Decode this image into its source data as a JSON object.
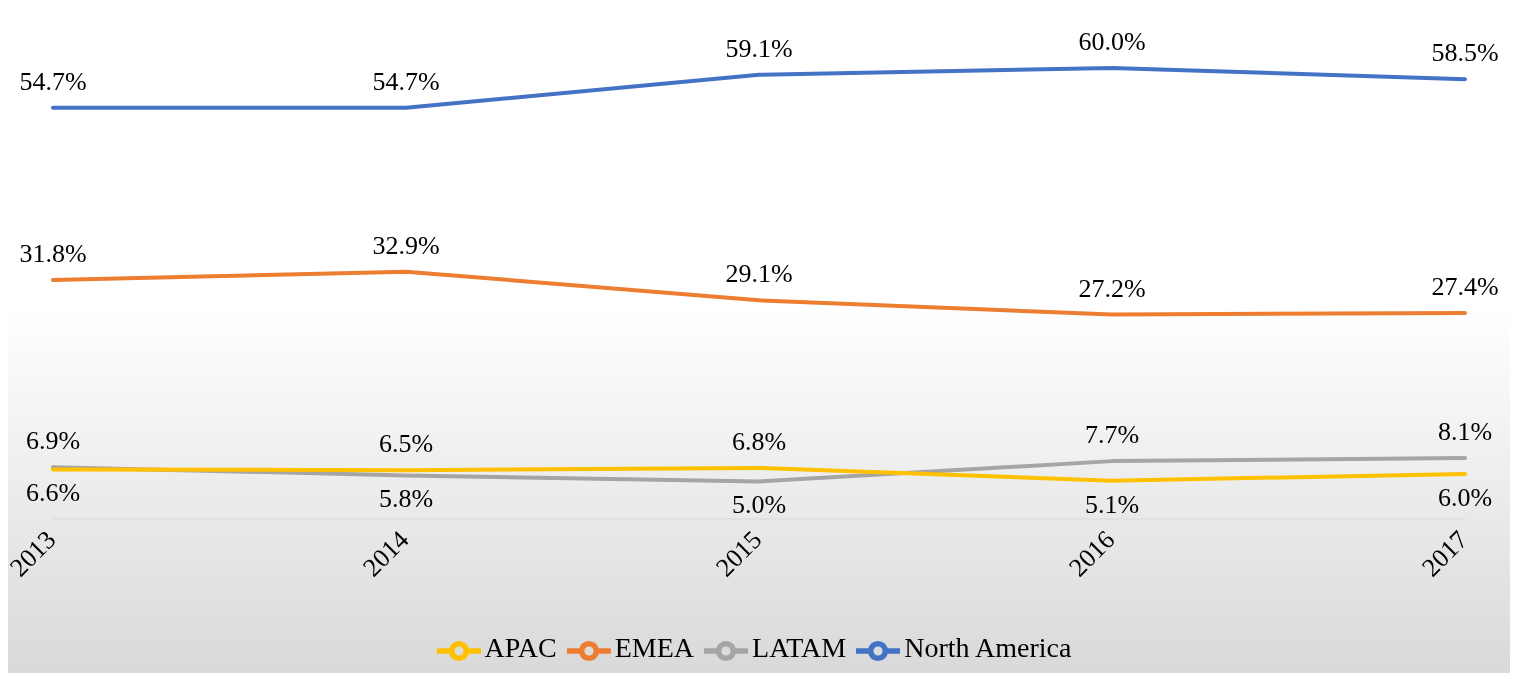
{
  "chart_data": {
    "type": "line",
    "categories": [
      "2013",
      "2014",
      "2015",
      "2016",
      "2017"
    ],
    "series": [
      {
        "name": "North America",
        "color": "#4472c4",
        "values": [
          54.7,
          54.7,
          59.1,
          60.0,
          58.5
        ],
        "value_labels": [
          "54.7%",
          "54.7%",
          "59.1%",
          "60.0%",
          "58.5%"
        ]
      },
      {
        "name": "EMEA",
        "color": "#ed7d31",
        "values": [
          31.8,
          32.9,
          29.1,
          27.2,
          27.4
        ],
        "value_labels": [
          "31.8%",
          "32.9%",
          "29.1%",
          "27.2%",
          "27.4%"
        ]
      },
      {
        "name": "LATAM",
        "color": "#a5a5a5",
        "values": [
          6.9,
          5.8,
          5.0,
          7.7,
          8.1
        ],
        "value_labels": [
          "6.9%",
          "5.8%",
          "5.0%",
          "7.7%",
          "8.1%"
        ]
      },
      {
        "name": "APAC",
        "color": "#ffc000",
        "values": [
          6.6,
          6.5,
          6.8,
          5.1,
          6.0
        ],
        "value_labels": [
          "6.6%",
          "6.5%",
          "6.8%",
          "5.1%",
          "6.0%"
        ]
      }
    ],
    "legend": "bottom",
    "marker": "none",
    "line_style": "solid"
  }
}
